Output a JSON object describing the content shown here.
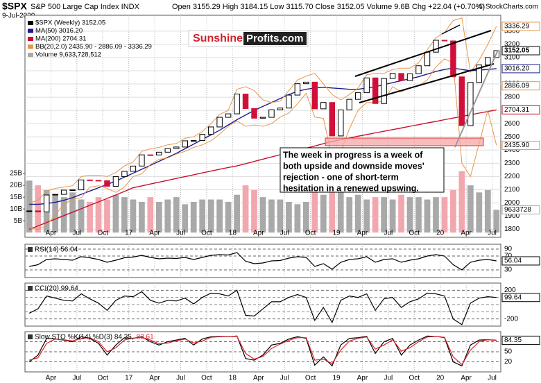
{
  "header": {
    "symbol": "$SPX",
    "name": "S&P 500 Large Cap Index INDX",
    "date": "9-Jul-2020",
    "quote": "Open 3155.29 High 3184.15 Low 3115.70 Close 3152.05 Volume 9.6B Chg +22.04 (+0.70%)",
    "copyright": "© StockCharts.com"
  },
  "annotations": {
    "logo_1": "Sunshine",
    "logo_2": "Profits.com",
    "note": [
      "The week in progress is a week of",
      "both upside and downside moves'",
      "rejection - one of short-term",
      "hesitation in a renewed upswing."
    ]
  },
  "chart_data": [
    {
      "type": "candlestick",
      "categories": [
        null,
        null,
        null,
        "Apr",
        null,
        null,
        "Jul",
        null,
        null,
        "Oct",
        null,
        null,
        "17",
        null,
        null,
        "Apr",
        null,
        null,
        "Jul",
        null,
        null,
        "Oct",
        null,
        null,
        "18",
        null,
        null,
        "Apr",
        null,
        null,
        "Jul",
        null,
        null,
        "Oct",
        null,
        null,
        "19",
        null,
        null,
        "Apr",
        null,
        null,
        "Jul",
        null,
        null,
        "Oct",
        null,
        null,
        "20",
        null,
        null,
        "Apr",
        null,
        null,
        "Jul"
      ],
      "series": [
        {
          "name": "$SPX (Weekly) 3152.05",
          "color": "#000000",
          "down_color": "#d0103a",
          "values": [
            1940,
            1932,
            2060,
            2065,
            2097,
            2099,
            2174,
            2171,
            2168,
            2126,
            2199,
            2239,
            2279,
            2364,
            2363,
            2384,
            2412,
            2423,
            2470,
            2472,
            2519,
            2575,
            2648,
            2674,
            2824,
            2714,
            2641,
            2648,
            2705,
            2718,
            2816,
            2902,
            2914,
            2712,
            2760,
            2507,
            2704,
            2784,
            2834,
            2946,
            2752,
            2942,
            2980,
            2926,
            2977,
            3038,
            3141,
            3231,
            3226,
            2954,
            2585,
            2912,
            3044,
            3100,
            3152.05
          ]
        },
        {
          "name": "MA(50) 3016.20",
          "color": "#1c1c8f",
          "values": [
            1990,
            1990,
            1995,
            2005,
            2020,
            2040,
            2065,
            2090,
            2115,
            2140,
            2165,
            2195,
            2225,
            2255,
            2285,
            2315,
            2345,
            2375,
            2410,
            2445,
            2480,
            2515,
            2550,
            2590,
            2630,
            2665,
            2700,
            2730,
            2760,
            2790,
            2820,
            2845,
            2860,
            2870,
            2875,
            2870,
            2865,
            2860,
            2860,
            2870,
            2880,
            2895,
            2910,
            2925,
            2940,
            2955,
            2975,
            2995,
            3010,
            3020,
            3010,
            3000,
            3005,
            3010,
            3016
          ]
        },
        {
          "name": "MA(200) 2704.31",
          "color": "#c8102e",
          "values": [
            1800,
            1826,
            1852,
            1878,
            1904,
            1930,
            1956,
            1982,
            2008,
            2034,
            2060,
            2087,
            2115,
            2129,
            2143,
            2157,
            2171,
            2185,
            2199,
            2213,
            2227,
            2241,
            2255,
            2268,
            2280,
            2297,
            2314,
            2331,
            2348,
            2365,
            2381,
            2397,
            2414,
            2431,
            2448,
            2464,
            2480,
            2492,
            2505,
            2517,
            2530,
            2542,
            2555,
            2567,
            2580,
            2592,
            2605,
            2617,
            2630,
            2642,
            2655,
            2667,
            2680,
            2692,
            2704
          ]
        },
        {
          "name": "BB(20,2.0) 2435.90 - 2886.09 - 3336.29",
          "color": "#e8954a",
          "values": [
            2000,
            2020,
            2090,
            2110,
            2120,
            2130,
            2200,
            2210,
            2210,
            2200,
            2230,
            2280,
            2310,
            2390,
            2410,
            2420,
            2440,
            2450,
            2490,
            2500,
            2540,
            2600,
            2670,
            2700,
            2860,
            2880,
            2850,
            2780,
            2760,
            2770,
            2850,
            2930,
            2960,
            2980,
            2900,
            2820,
            2780,
            2820,
            2870,
            2970,
            2980,
            2980,
            3010,
            3020,
            3020,
            3060,
            3160,
            3250,
            3290,
            3380,
            3400,
            2990,
            3080,
            3200,
            3336
          ],
          "lower": [
            1810,
            1800,
            1830,
            1910,
            1990,
            2030,
            2040,
            2120,
            2130,
            2110,
            2080,
            2120,
            2200,
            2220,
            2290,
            2330,
            2340,
            2370,
            2390,
            2420,
            2440,
            2470,
            2520,
            2580,
            2620,
            2580,
            2590,
            2580,
            2600,
            2650,
            2680,
            2750,
            2830,
            2650,
            2640,
            2340,
            2390,
            2560,
            2700,
            2760,
            2760,
            2770,
            2880,
            2840,
            2870,
            2890,
            2930,
            3030,
            3090,
            3060,
            2300,
            2200,
            2450,
            2700,
            2436
          ]
        },
        {
          "name": "Volume 9,633,728,512",
          "color": "#a9a9a9",
          "down_color": "#f2a7ae",
          "axis": "y2",
          "values": [
            22,
            20,
            18,
            16,
            15,
            17,
            14,
            13,
            15,
            14,
            16,
            15,
            14,
            13,
            15,
            13,
            14,
            15,
            12,
            13,
            14,
            14,
            14,
            13,
            16,
            20,
            18,
            15,
            14,
            14,
            13,
            12,
            13,
            18,
            16,
            17,
            17,
            15,
            16,
            14,
            15,
            15,
            14,
            16,
            15,
            15,
            14,
            15,
            15,
            18,
            26,
            20,
            17,
            18,
            9.63
          ]
        }
      ],
      "ylim": [
        1740,
        3420
      ],
      "yticks": [
        1800,
        1900,
        2000,
        2100,
        2200,
        2300,
        2400,
        2500,
        2600,
        2700,
        2800,
        2900,
        3000,
        3100,
        3200,
        3300
      ],
      "y2lim": [
        -2,
        92
      ],
      "y2ticks": [
        {
          "value": 5,
          "label": "5B"
        },
        {
          "value": 10,
          "label": "10B"
        },
        {
          "value": 15,
          "label": "15B"
        },
        {
          "value": 20,
          "label": "20B"
        },
        {
          "value": 25,
          "label": "25B"
        }
      ],
      "grid": true,
      "tags": [
        {
          "value": 3336.29,
          "color": "#e8954a"
        },
        {
          "value": 3152.05,
          "color": "#000000"
        },
        {
          "value": 3016.2,
          "label": "3016.20",
          "color": "#1c1c8f"
        },
        {
          "value": 2886.09,
          "color": "#e8954a"
        },
        {
          "value": 2704.31,
          "color": "#c8102e"
        },
        {
          "value": 2435.9,
          "label": "2435.90",
          "color": "#e8954a"
        },
        {
          "value": 9.633728,
          "label": "9633728",
          "color": "#a9a9a9",
          "axis": "y2"
        }
      ]
    },
    {
      "type": "line",
      "title": "RSI(14) 56.04",
      "color": "#000000",
      "values": [
        40,
        45,
        60,
        62,
        60,
        58,
        68,
        65,
        60,
        52,
        58,
        65,
        67,
        72,
        66,
        62,
        64,
        63,
        66,
        60,
        66,
        72,
        74,
        73,
        80,
        55,
        48,
        50,
        56,
        57,
        64,
        68,
        66,
        40,
        48,
        32,
        52,
        60,
        62,
        68,
        52,
        60,
        62,
        52,
        58,
        62,
        70,
        74,
        70,
        45,
        30,
        52,
        58,
        60,
        56.04
      ],
      "ylim": [
        8,
        104
      ],
      "yticks": [
        30,
        70,
        90
      ],
      "tags": [
        {
          "value": 56.04,
          "color": "#000000"
        }
      ]
    },
    {
      "type": "line",
      "title": "CCI(20) 99.64",
      "color": "#000000",
      "values": [
        -120,
        -60,
        120,
        90,
        60,
        50,
        150,
        80,
        20,
        -80,
        60,
        120,
        110,
        180,
        60,
        20,
        60,
        50,
        90,
        10,
        100,
        160,
        150,
        120,
        200,
        -150,
        -160,
        -60,
        40,
        40,
        100,
        140,
        100,
        -220,
        -40,
        -250,
        60,
        120,
        100,
        150,
        -80,
        80,
        100,
        -40,
        40,
        80,
        160,
        150,
        120,
        -200,
        -280,
        20,
        90,
        110,
        99.64
      ],
      "ylim": [
        -300,
        300
      ],
      "yticks": [
        -200,
        200
      ],
      "dashed_lines": [
        -100,
        0,
        100
      ],
      "tags": [
        {
          "value": 99.64,
          "color": "#000000"
        }
      ]
    },
    {
      "type": "line",
      "title": "Slow STO %K(14) %D(3) 84.35,",
      "title_red": "83.61",
      "series": [
        {
          "color": "#000000",
          "values": [
            20,
            40,
            90,
            88,
            85,
            80,
            95,
            90,
            75,
            40,
            70,
            92,
            90,
            95,
            80,
            70,
            80,
            85,
            90,
            70,
            88,
            95,
            96,
            95,
            97,
            30,
            25,
            40,
            70,
            75,
            88,
            95,
            90,
            10,
            35,
            8,
            70,
            90,
            92,
            96,
            45,
            80,
            90,
            40,
            70,
            85,
            97,
            96,
            92,
            20,
            8,
            70,
            85,
            86,
            84.35
          ]
        },
        {
          "color": "#e0202a",
          "values": [
            25,
            32,
            75,
            88,
            86,
            82,
            90,
            92,
            80,
            50,
            62,
            85,
            91,
            93,
            85,
            74,
            76,
            83,
            88,
            76,
            82,
            93,
            95,
            95,
            96,
            45,
            28,
            36,
            60,
            73,
            84,
            92,
            92,
            25,
            28,
            15,
            55,
            82,
            90,
            94,
            58,
            70,
            86,
            52,
            62,
            80,
            94,
            96,
            93,
            35,
            12,
            55,
            80,
            86,
            83.61
          ]
        }
      ],
      "ylim": [
        -10,
        110
      ],
      "yticks": [
        20,
        50,
        80
      ],
      "tags": [
        {
          "value": 84.35,
          "color": "#000000"
        }
      ]
    }
  ]
}
